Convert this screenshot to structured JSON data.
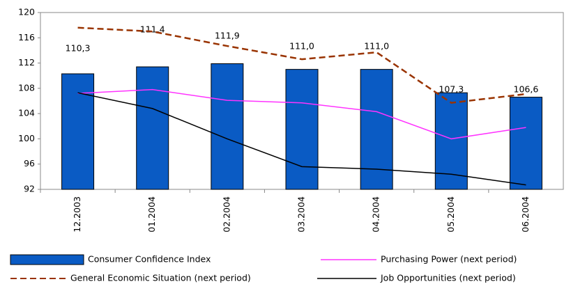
{
  "chart_data": {
    "type": "combo",
    "categories": [
      "12.2003",
      "01.2004",
      "02.2004",
      "03.2004",
      "04.2004",
      "05.2004",
      "06.2004"
    ],
    "series": [
      {
        "name": "Consumer Confidence Index",
        "type": "bar",
        "color": "#0a5bc4",
        "values": [
          110.3,
          111.4,
          111.9,
          111.0,
          111.0,
          107.3,
          106.6
        ],
        "value_labels": [
          "110,3",
          "111,4",
          "111,9",
          "111,0",
          "111,0",
          "107,3",
          "106,6"
        ]
      },
      {
        "name": "Purchasing Power (next period)",
        "type": "line",
        "color": "#ff33ff",
        "dashed": false,
        "values": [
          107.2,
          107.8,
          106.1,
          105.7,
          104.3,
          100.0,
          101.8
        ]
      },
      {
        "name": "General Economic Situation (next period)",
        "type": "line",
        "color": "#993300",
        "dashed": true,
        "values": [
          117.6,
          117.0,
          114.7,
          112.6,
          113.7,
          105.7,
          107.1
        ]
      },
      {
        "name": "Job Opportunities (next period)",
        "type": "line",
        "color": "#000000",
        "dashed": false,
        "values": [
          107.3,
          104.8,
          100.0,
          95.6,
          95.2,
          94.4,
          92.7
        ]
      }
    ],
    "ylim": [
      92,
      120
    ],
    "yticks": [
      92,
      96,
      100,
      104,
      108,
      112,
      116,
      120
    ],
    "grid": false
  }
}
